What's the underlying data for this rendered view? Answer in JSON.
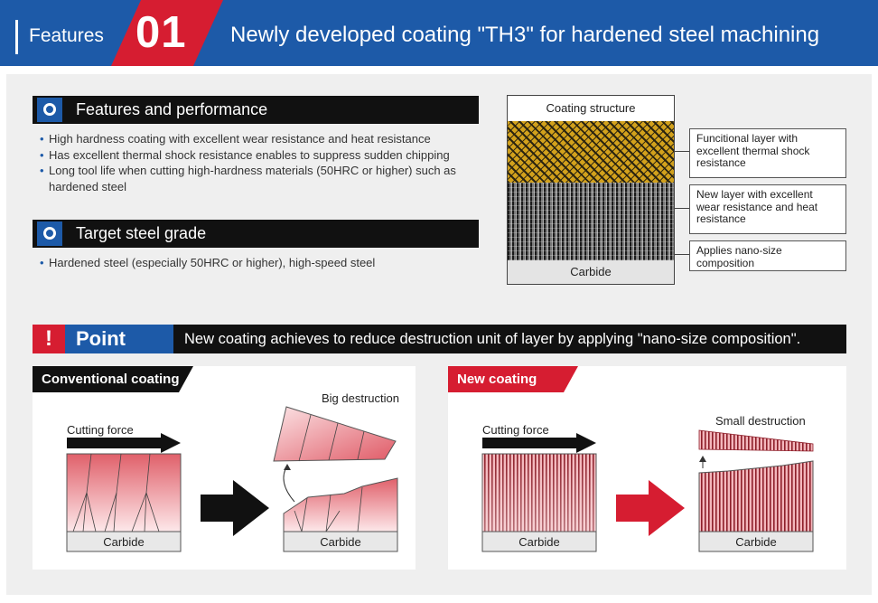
{
  "header": {
    "section": "Features",
    "number": "01",
    "title": "Newly developed coating \"TH3\" for hardened steel machining"
  },
  "features": {
    "heading": "Features and performance",
    "bullets": [
      "High hardness coating with excellent wear resistance and heat resistance",
      "Has excellent thermal shock resistance enables to suppress sudden chipping",
      "Long tool life when cutting high-hardness materials (50HRC or higher) such as hardened steel"
    ]
  },
  "target": {
    "heading": "Target steel grade",
    "bullets": [
      "Hardened steel (especially 50HRC or higher), high-speed steel"
    ]
  },
  "coating_structure": {
    "title": "Coating structure",
    "base": "Carbide",
    "callouts": [
      "Funcitional layer with excellent thermal shock resistance",
      "New layer with excellent wear resistance and heat resistance",
      "Applies nano-size composition"
    ]
  },
  "point": {
    "mark": "!",
    "label": "Point",
    "text": "New coating achieves to reduce destruction unit of layer by applying \"nano-size composition\"."
  },
  "conventional": {
    "tag": "Conventional coating",
    "force_label": "Cutting force",
    "result_label": "Big destruction",
    "base_before": "Carbide",
    "base_after": "Carbide"
  },
  "new_coating": {
    "tag": "New coating",
    "force_label": "Cutting force",
    "result_label": "Small destruction",
    "base_before": "Carbide",
    "base_after": "Carbide"
  },
  "colors": {
    "brand_blue": "#1d5aa8",
    "accent_red": "#d61d31",
    "dark": "#111111"
  }
}
